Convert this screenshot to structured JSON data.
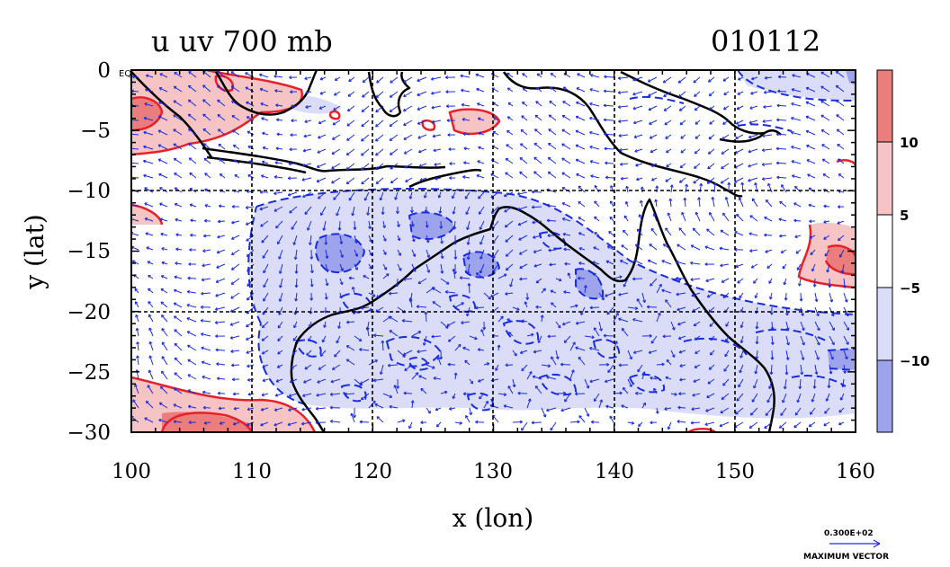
{
  "chart_data": {
    "type": "contour-vector map",
    "title": "u uv 700 mb",
    "date_label": "010112",
    "xlabel": "x (lon)",
    "ylabel": "y (lat)",
    "xlim": [
      100,
      160
    ],
    "ylim": [
      -30,
      0
    ],
    "x_ticks": [
      "100",
      "110",
      "120",
      "130",
      "140",
      "150",
      "160"
    ],
    "y_ticks": [
      "0",
      "−5",
      "−10",
      "−15",
      "−20",
      "−25",
      "−30"
    ],
    "y_tick_suffix_top": "EQ",
    "grid": true,
    "colorbar": {
      "ticks": [
        "10",
        "5",
        "−5",
        "−10"
      ],
      "colors": [
        "#ec7d7d",
        "#f6c4c4",
        "#ffffff",
        "#dadcf8",
        "#9da4ec"
      ]
    },
    "contour_colors": {
      "positive": "#e8202a",
      "negative": "#1a2ce0",
      "coast": "#000000",
      "vector": "#1a2ce0"
    },
    "reference_vector": {
      "value": "0.300E+02",
      "label": "MAXIMUM VECTOR"
    }
  }
}
